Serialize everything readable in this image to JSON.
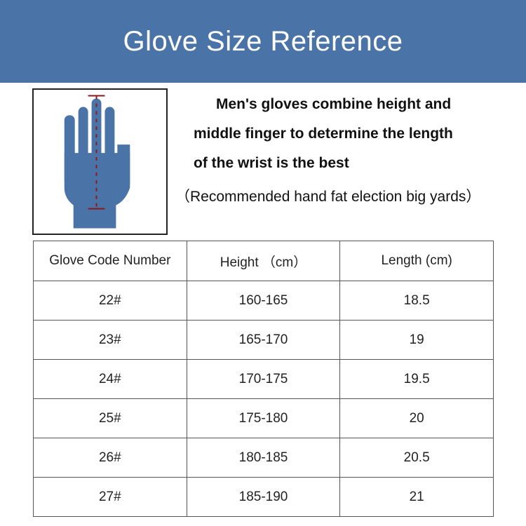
{
  "header": {
    "title": "Glove Size Reference"
  },
  "colors": {
    "banner": "#4a74a8",
    "hand": "#4a74a8",
    "measure_line": "#8b1a1a"
  },
  "illustration": {
    "icon": "hand-measurement-icon"
  },
  "description": {
    "lines": [
      "Men's gloves combine height and",
      "middle finger to determine the length",
      "of the wrist is the best"
    ],
    "recommendation": "（Recommended hand fat election big yards）"
  },
  "table": {
    "headers": [
      "Glove Code Number",
      "Height （cm）",
      "Length (cm)"
    ],
    "rows": [
      [
        "22#",
        "160-165",
        "18.5"
      ],
      [
        "23#",
        "165-170",
        "19"
      ],
      [
        "24#",
        "170-175",
        "19.5"
      ],
      [
        "25#",
        "175-180",
        "20"
      ],
      [
        "26#",
        "180-185",
        "20.5"
      ],
      [
        "27#",
        "185-190",
        "21"
      ]
    ]
  }
}
